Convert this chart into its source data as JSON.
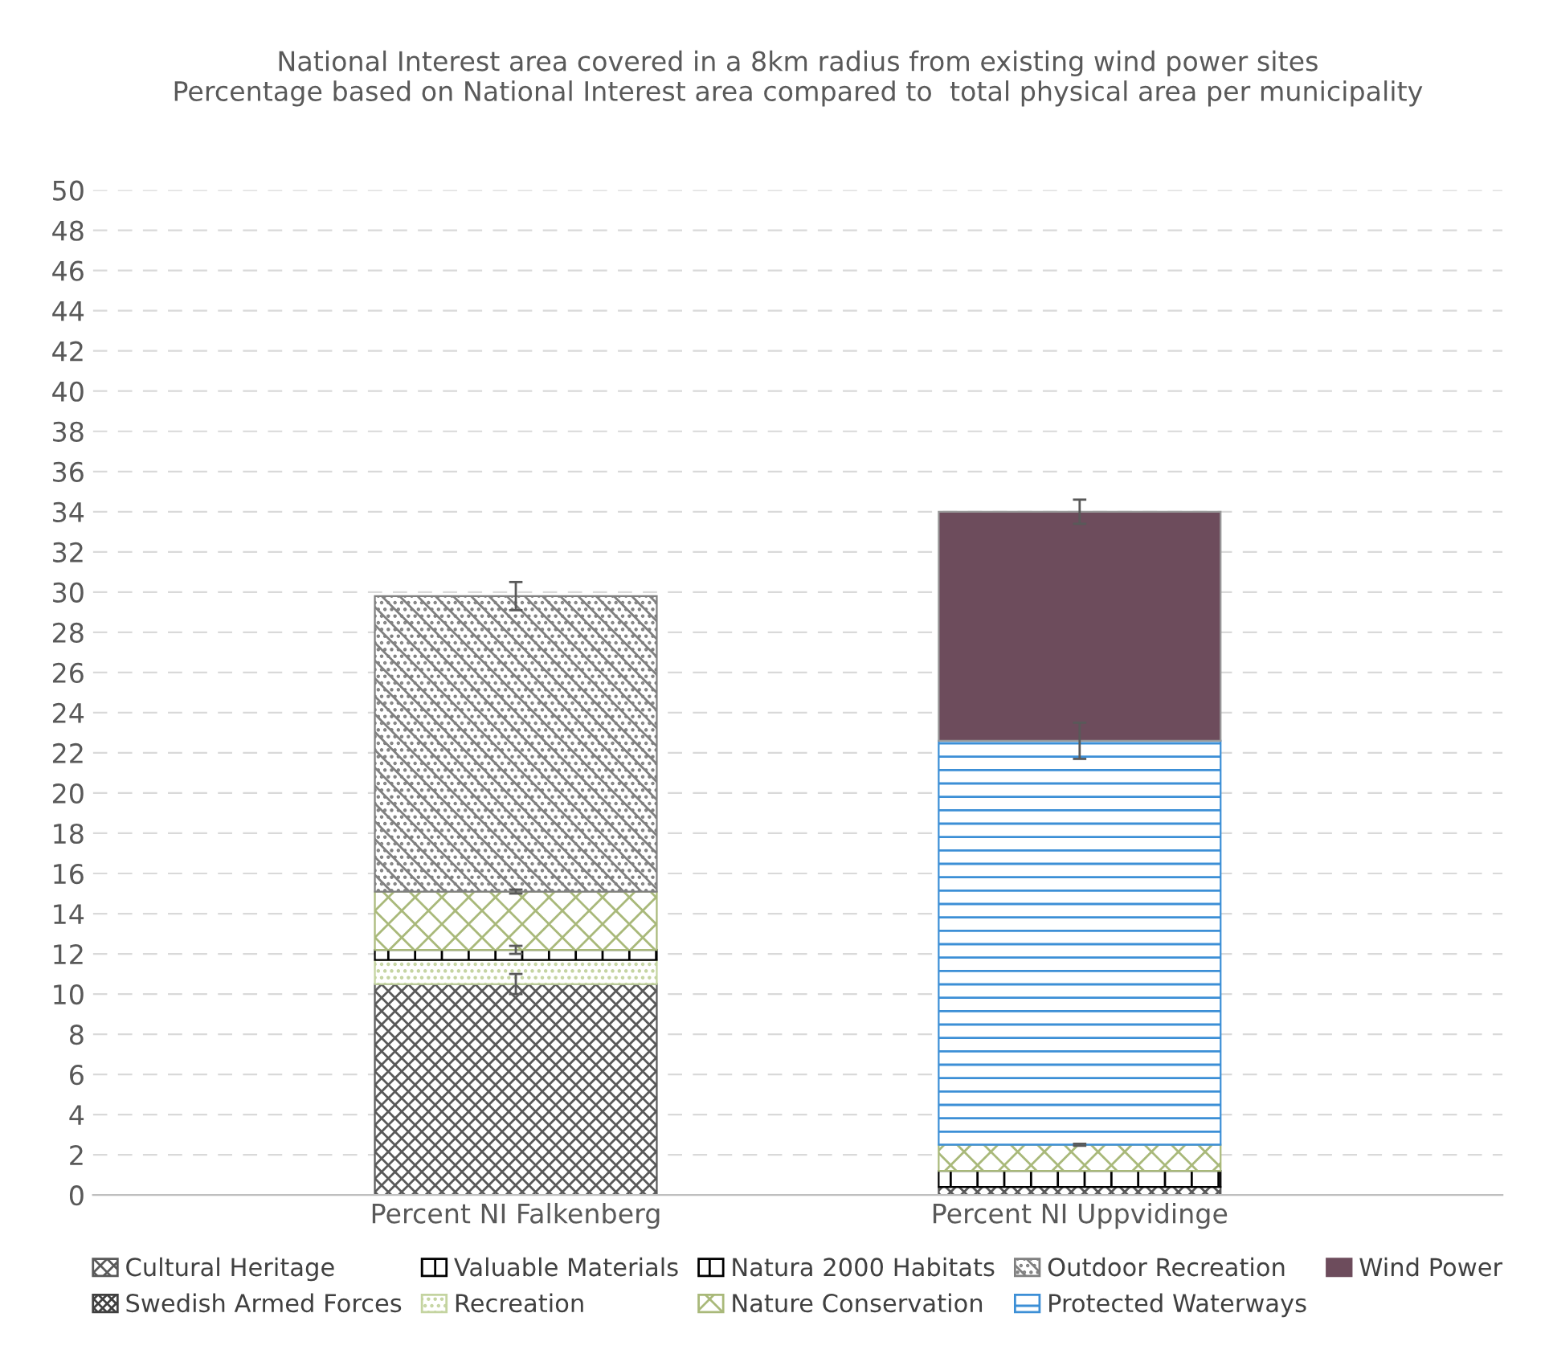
{
  "chart_data": {
    "type": "bar",
    "stacked": true,
    "title": "National Interest area covered in a 8km radius from existing wind power sites\nPercentage based on National Interest area compared to  total physical area per municipality",
    "categories": [
      "Percent NI Falkenberg",
      "Percent NI Uppvidinge"
    ],
    "series": [
      {
        "name": "Cultural Heritage",
        "color": "#595959",
        "values": [
          10.5,
          0.4
        ],
        "errors": [
          0.5,
          null
        ]
      },
      {
        "name": "Swedish Armed Forces",
        "color": "#404040",
        "values": [
          null,
          null
        ]
      },
      {
        "name": "Valuable Materials",
        "color": "#000000",
        "values": [
          null,
          null
        ]
      },
      {
        "name": "Recreation",
        "color": "#c4d4a0",
        "values": [
          1.2,
          null
        ]
      },
      {
        "name": "Natura 2000 Habitats",
        "color": "#000000",
        "values": [
          0.5,
          0.8
        ],
        "errors": [
          0.2,
          null
        ]
      },
      {
        "name": "Nature Conservation",
        "color": "#a9b97a",
        "values": [
          2.9,
          1.3
        ],
        "errors": [
          0.1,
          0.05
        ]
      },
      {
        "name": "Outdoor Recreation",
        "color": "#808080",
        "values": [
          14.7,
          null
        ],
        "errors": [
          0.7,
          null
        ]
      },
      {
        "name": "Protected Waterways",
        "color": "#3c8fd6",
        "values": [
          null,
          20.1
        ],
        "errors": [
          null,
          0.9
        ]
      },
      {
        "name": "Wind Power",
        "color": "#6d4c5c",
        "values": [
          null,
          11.4
        ],
        "errors": [
          null,
          0.6
        ]
      }
    ],
    "ylim": [
      0,
      50
    ],
    "yticks": [
      0,
      2,
      4,
      6,
      8,
      10,
      12,
      14,
      16,
      18,
      20,
      22,
      24,
      26,
      28,
      30,
      32,
      34,
      36,
      38,
      40,
      42,
      44,
      46,
      48,
      50
    ],
    "grid": "y",
    "legend": "bottom"
  }
}
